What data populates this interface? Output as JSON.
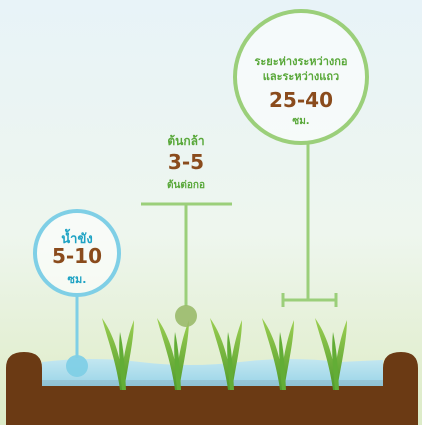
{
  "water": {
    "label": "น้ำขัง",
    "value": "5-10",
    "unit": "ซม."
  },
  "seedlings": {
    "label": "ต้นกล้า",
    "value": "3-5",
    "unit": "ต้นต่อกอ"
  },
  "spacing": {
    "label_line1": "ระยะห่างระหว่างกอ",
    "label_line2": "และระหว่างแถว",
    "value": "25-40",
    "unit": "ซม."
  },
  "colors": {
    "green": "#59a83a",
    "brown": "#8a4b1c",
    "blue": "#1fa3c4",
    "soil": "#6b3a14"
  }
}
